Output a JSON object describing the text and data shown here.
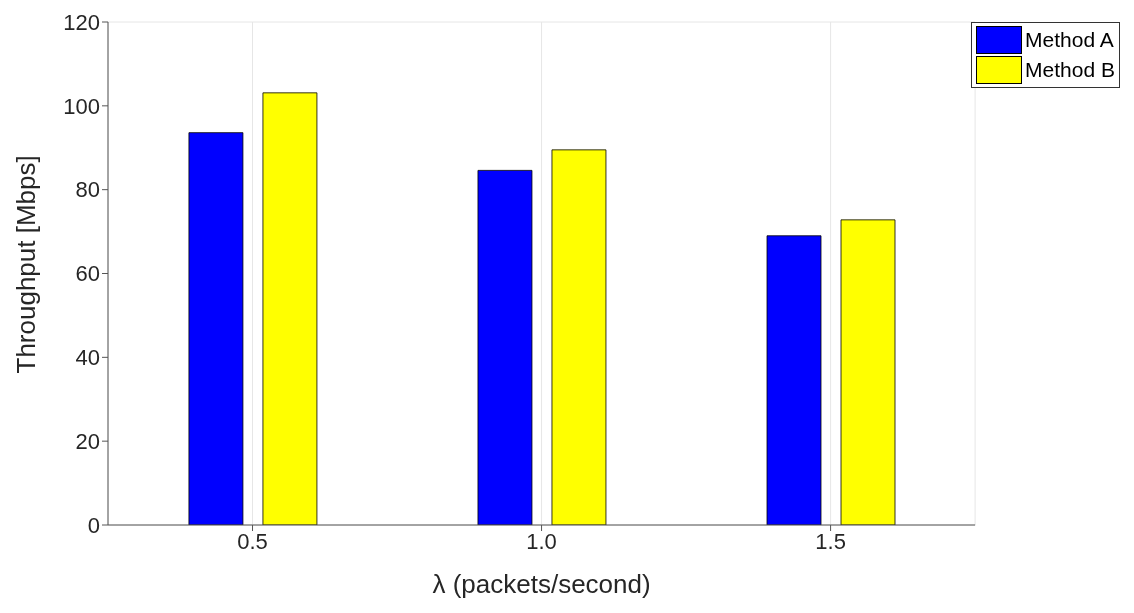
{
  "chart_data": {
    "type": "bar",
    "xlabel": "λ (packets/second)",
    "ylabel": "Throughput [Mbps]",
    "categories": [
      "0.5",
      "1.0",
      "1.5"
    ],
    "series": [
      {
        "name": "Method A",
        "color": "#0000ff",
        "values": [
          93.6,
          84.6,
          69.0
        ]
      },
      {
        "name": "Method B",
        "color": "#ffff00",
        "values": [
          103.1,
          89.5,
          72.8
        ]
      }
    ],
    "ylim": [
      0,
      120
    ],
    "yticks": [
      0,
      20,
      40,
      60,
      80,
      100,
      120
    ],
    "grid": true,
    "legend": "top right"
  }
}
